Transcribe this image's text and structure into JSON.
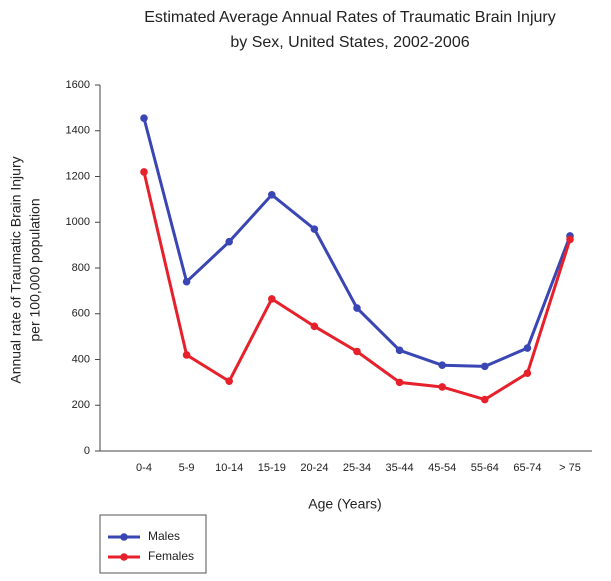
{
  "chart_data": {
    "type": "line",
    "title": [
      "Estimated Average Annual Rates of Traumatic Brain Injury",
      "by Sex, United States, 2002-2006"
    ],
    "y_label": [
      "Annual rate of Traumatic Brain Injury",
      "per 100,000 population"
    ],
    "x_label": "Age (Years)",
    "categories": [
      "0-4",
      "5-9",
      "10-14",
      "15-19",
      "20-24",
      "25-34",
      "35-44",
      "45-54",
      "55-64",
      "65-74",
      "> 75"
    ],
    "series": [
      {
        "name": "Males",
        "color": "#3a46b4",
        "values": [
          1455,
          740,
          915,
          1120,
          970,
          625,
          440,
          375,
          370,
          450,
          940
        ]
      },
      {
        "name": "Females",
        "color": "#e6212b",
        "values": [
          1220,
          420,
          305,
          665,
          545,
          435,
          300,
          280,
          225,
          340,
          925
        ]
      }
    ],
    "ylim": [
      0,
      1600
    ],
    "yticks": [
      0,
      200,
      400,
      600,
      800,
      1000,
      1200,
      1400,
      1600
    ],
    "grid": false,
    "legend": "bottom-left"
  }
}
